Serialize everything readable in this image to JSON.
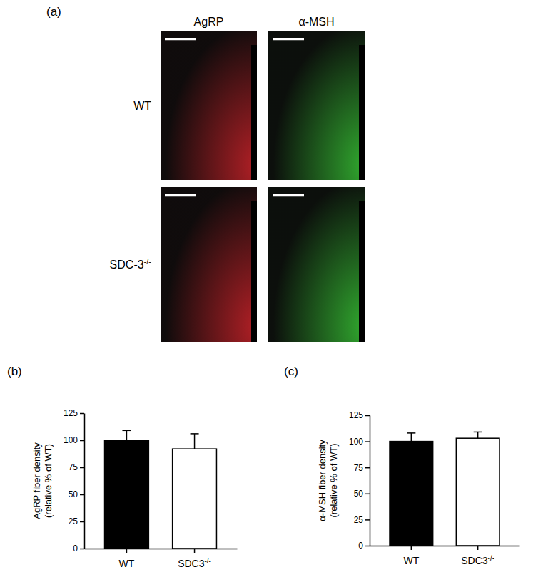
{
  "figure": {
    "panel_label": "(a)",
    "image_columns": [
      "AgRP",
      "α-MSH"
    ],
    "image_rows": [
      {
        "text": "WT"
      },
      {
        "text": "SDC-3",
        "superscript": "-/-"
      }
    ]
  },
  "chart_data": [
    {
      "type": "bar",
      "panel_label": "(b)",
      "ylabel": [
        "AgRP fiber density",
        "(relative % of WT)"
      ],
      "categories": [
        "WT",
        "SDC3"
      ],
      "category_superscripts": [
        null,
        "-/-"
      ],
      "values": [
        100,
        92
      ],
      "errors": [
        9,
        14
      ],
      "colors": [
        "#000000",
        "#ffffff"
      ],
      "ylim": [
        0,
        125
      ],
      "yticks": [
        0,
        25,
        50,
        75,
        100,
        125
      ]
    },
    {
      "type": "bar",
      "panel_label": "(c)",
      "ylabel": [
        "α-MSH fiber density",
        "(relative % of WT)"
      ],
      "categories": [
        "WT",
        "SDC3"
      ],
      "category_superscripts": [
        null,
        "-/-"
      ],
      "values": [
        100,
        103
      ],
      "errors": [
        8,
        6
      ],
      "colors": [
        "#000000",
        "#ffffff"
      ],
      "ylim": [
        0,
        125
      ],
      "yticks": [
        0,
        25,
        50,
        75,
        100,
        125
      ]
    }
  ]
}
